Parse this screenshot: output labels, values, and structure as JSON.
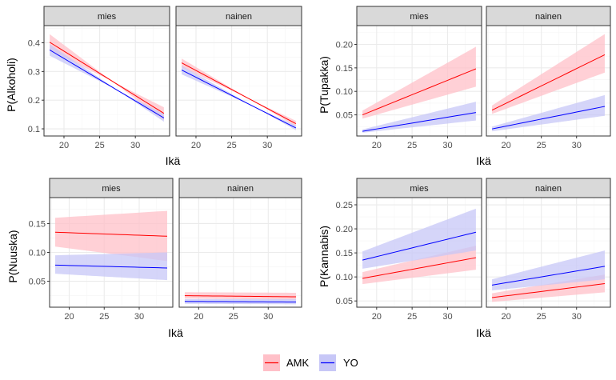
{
  "chart_data": [
    {
      "type": "line",
      "ylabel": "P(Alkoholi)",
      "xlabel": "Ikä",
      "x_range": [
        18,
        34
      ],
      "xticks": [
        "20",
        "25",
        "30"
      ],
      "yticks": [
        "0.1",
        "0.2",
        "0.3",
        "0.4"
      ],
      "ylim": [
        0.075,
        0.46
      ],
      "panels": [
        {
          "strip": "mies",
          "series": [
            {
              "name": "AMK",
              "y": [
                0.402,
                0.154
              ],
              "band": [
                [
                  0.43,
                  0.13
                ],
                [
                  0.375,
                  0.175
                ]
              ]
            },
            {
              "name": "YO",
              "y": [
                0.375,
                0.138
              ],
              "band": [
                [
                  0.395,
                  0.125
                ],
                [
                  0.355,
                  0.152
                ]
              ]
            }
          ]
        },
        {
          "strip": "nainen",
          "series": [
            {
              "name": "AMK",
              "y": [
                0.33,
                0.118
              ],
              "band": [
                [
                  0.345,
                  0.108
                ],
                [
                  0.315,
                  0.128
                ]
              ]
            },
            {
              "name": "YO",
              "y": [
                0.305,
                0.103
              ],
              "band": [
                [
                  0.32,
                  0.095
                ],
                [
                  0.29,
                  0.112
                ]
              ]
            }
          ]
        }
      ]
    },
    {
      "type": "line",
      "ylabel": "P(Tupakka)",
      "xlabel": "Ikä",
      "x_range": [
        18,
        34
      ],
      "xticks": [
        "20",
        "25",
        "30"
      ],
      "yticks": [
        "0.05",
        "0.10",
        "0.15",
        "0.20"
      ],
      "ylim": [
        0.005,
        0.24
      ],
      "panels": [
        {
          "strip": "mies",
          "series": [
            {
              "name": "AMK",
              "y": [
                0.05,
                0.148
              ],
              "band": [
                [
                  0.042,
                  0.11
                ],
                [
                  0.059,
                  0.195
                ]
              ]
            },
            {
              "name": "YO",
              "y": [
                0.015,
                0.055
              ],
              "band": [
                [
                  0.012,
                  0.038
                ],
                [
                  0.019,
                  0.078
                ]
              ]
            }
          ]
        },
        {
          "strip": "nainen",
          "series": [
            {
              "name": "AMK",
              "y": [
                0.06,
                0.178
              ],
              "band": [
                [
                  0.052,
                  0.14
                ],
                [
                  0.07,
                  0.222
                ]
              ]
            },
            {
              "name": "YO",
              "y": [
                0.02,
                0.068
              ],
              "band": [
                [
                  0.015,
                  0.048
                ],
                [
                  0.025,
                  0.092
                ]
              ]
            }
          ]
        }
      ]
    },
    {
      "type": "line",
      "ylabel": "P(Nuuska)",
      "xlabel": "Ikä",
      "x_range": [
        18,
        34
      ],
      "xticks": [
        "20",
        "25",
        "30"
      ],
      "yticks": [
        "0.05",
        "0.10",
        "0.15"
      ],
      "ylim": [
        0.005,
        0.195
      ],
      "panels": [
        {
          "strip": "mies",
          "series": [
            {
              "name": "AMK",
              "y": [
                0.135,
                0.128
              ],
              "band": [
                [
                  0.11,
                  0.085
                ],
                [
                  0.16,
                  0.172
                ]
              ]
            },
            {
              "name": "YO",
              "y": [
                0.078,
                0.073
              ],
              "band": [
                [
                  0.063,
                  0.052
                ],
                [
                  0.095,
                  0.1
                ]
              ]
            }
          ]
        },
        {
          "strip": "nainen",
          "series": [
            {
              "name": "AMK",
              "y": [
                0.025,
                0.023
              ],
              "band": [
                [
                  0.02,
                  0.018
                ],
                [
                  0.031,
                  0.03
                ]
              ]
            },
            {
              "name": "YO",
              "y": [
                0.015,
                0.014
              ],
              "band": [
                [
                  0.011,
                  0.01
                ],
                [
                  0.019,
                  0.019
                ]
              ]
            }
          ]
        }
      ]
    },
    {
      "type": "line",
      "ylabel": "P(Kannabis)",
      "xlabel": "Ikä",
      "x_range": [
        18,
        34
      ],
      "xticks": [
        "20",
        "25",
        "30"
      ],
      "yticks": [
        "0.05",
        "0.10",
        "0.15",
        "0.20",
        "0.25"
      ],
      "ylim": [
        0.037,
        0.265
      ],
      "panels": [
        {
          "strip": "mies",
          "series": [
            {
              "name": "AMK",
              "y": [
                0.097,
                0.14
              ],
              "band": [
                [
                  0.085,
                  0.115
                ],
                [
                  0.11,
                  0.165
                ]
              ]
            },
            {
              "name": "YO",
              "y": [
                0.135,
                0.193
              ],
              "band": [
                [
                  0.117,
                  0.155
                ],
                [
                  0.153,
                  0.242
                ]
              ]
            }
          ]
        },
        {
          "strip": "nainen",
          "series": [
            {
              "name": "AMK",
              "y": [
                0.057,
                0.086
              ],
              "band": [
                [
                  0.048,
                  0.068
                ],
                [
                  0.066,
                  0.105
                ]
              ]
            },
            {
              "name": "YO",
              "y": [
                0.083,
                0.122
              ],
              "band": [
                [
                  0.072,
                  0.095
                ],
                [
                  0.095,
                  0.155
                ]
              ]
            }
          ]
        }
      ]
    }
  ],
  "colors": {
    "AMK": "#ff0000",
    "YO": "#0000ff",
    "AMK_band": "#ffc0c8",
    "YO_band": "#c7c7f7",
    "strip_bg": "#d9d9d9",
    "grid_major": "#ebebeb",
    "grid_minor": "#f5f5f5",
    "panel_border": "#333333"
  },
  "legend": {
    "items": [
      {
        "label": "AMK",
        "color": "#ff0000"
      },
      {
        "label": "YO",
        "color": "#0000ff"
      }
    ],
    "position": "bottom"
  }
}
